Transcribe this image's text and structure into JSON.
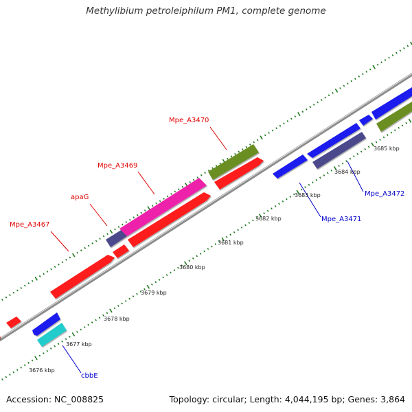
{
  "title": "Methylibium petroleiphilum PM1, complete genome",
  "footer": {
    "accession": "Accession: NC_008825",
    "topology": "Topology: circular; Length: 4,044,195 bp; Genes: 3,864"
  },
  "colors": {
    "backbone": "#8c8c8c",
    "tick": "#1e7a1e",
    "forward_label": "#e00000",
    "reverse_label": "#0000cc"
  },
  "kbp_labels": [
    "3676 kbp",
    "3677 kbp",
    "3678 kbp",
    "3679 kbp",
    "3680 kbp",
    "3681 kbp",
    "3682 kbp",
    "3683 kbp",
    "3684 kbp",
    "3685 kbp"
  ],
  "gene_labels": [
    {
      "name": "Mpe_A3467",
      "color": "#e00000"
    },
    {
      "name": "apaG",
      "color": "#e00000"
    },
    {
      "name": "Mpe_A3469",
      "color": "#e00000"
    },
    {
      "name": "Mpe_A3470",
      "color": "#e00000"
    },
    {
      "name": "Mpe_A3471",
      "color": "#0000cc"
    },
    {
      "name": "Mpe_A3472",
      "color": "#0000cc"
    },
    {
      "name": "cbbE",
      "color": "#0000cc"
    }
  ],
  "feature_colors": {
    "red": "#ff1a1a",
    "magenta": "#ee22aa",
    "olive": "#6b8e23",
    "blue": "#1a1aee",
    "slate": "#4b4a8c",
    "cyan": "#22cccc"
  }
}
